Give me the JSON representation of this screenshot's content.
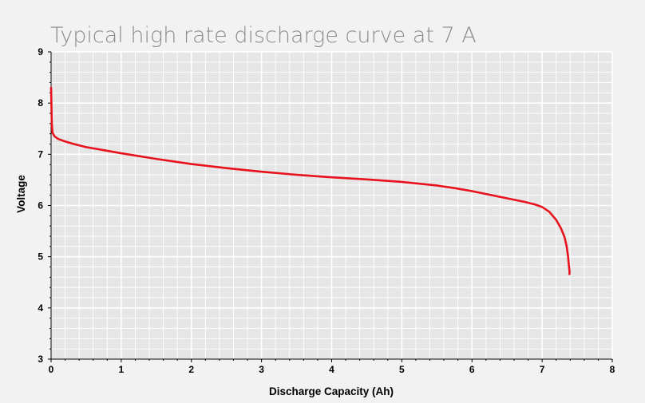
{
  "chart_data": {
    "type": "line",
    "title": "Typical high rate discharge curve at 7 A",
    "xlabel": "Discharge Capacity (Ah)",
    "ylabel": "Voltage",
    "xlim": [
      0,
      8
    ],
    "ylim": [
      3,
      9
    ],
    "xticks": [
      "0",
      "1",
      "2",
      "3",
      "4",
      "5",
      "6",
      "7",
      "8"
    ],
    "yticks": [
      "3",
      "4",
      "5",
      "6",
      "7",
      "8",
      "9"
    ],
    "grid": true,
    "series": [
      {
        "color": "#e8121c",
        "x": [
          0,
          0.01,
          0.02,
          0.05,
          0.1,
          0.2,
          0.3,
          0.5,
          0.75,
          1.0,
          1.5,
          2.0,
          2.5,
          3.0,
          3.5,
          4.0,
          4.5,
          5.0,
          5.5,
          5.75,
          6.0,
          6.25,
          6.5,
          6.75,
          6.9,
          7.0,
          7.1,
          7.2,
          7.27,
          7.32,
          7.35,
          7.37,
          7.38,
          7.39,
          7.39
        ],
        "y": [
          8.3,
          7.6,
          7.42,
          7.35,
          7.3,
          7.25,
          7.21,
          7.14,
          7.08,
          7.02,
          6.91,
          6.81,
          6.73,
          6.66,
          6.6,
          6.55,
          6.51,
          6.46,
          6.39,
          6.34,
          6.28,
          6.21,
          6.14,
          6.07,
          6.02,
          5.97,
          5.88,
          5.72,
          5.55,
          5.38,
          5.2,
          5.0,
          4.85,
          4.72,
          4.66
        ]
      }
    ]
  }
}
